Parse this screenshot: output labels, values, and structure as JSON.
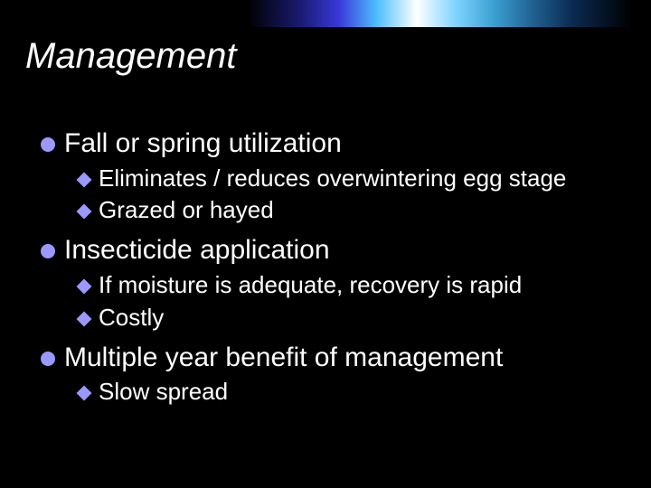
{
  "colors": {
    "background": "#000000",
    "text": "#ffffff",
    "bullet": "#9999ff"
  },
  "title": {
    "text": "Management",
    "font_size": 40,
    "font_style": "italic"
  },
  "level1_font_size": 30,
  "level2_font_size": 26,
  "l1_bullet_shape": "circle",
  "l2_bullet_shape": "diamond",
  "items": [
    {
      "text": "Fall or spring utilization",
      "sub": [
        {
          "text": "Eliminates / reduces overwintering egg stage"
        },
        {
          "text": "Grazed or hayed"
        }
      ]
    },
    {
      "text": "Insecticide application",
      "sub": [
        {
          "text": "If moisture is adequate, recovery is rapid"
        },
        {
          "text": "Costly"
        }
      ]
    },
    {
      "text": "Multiple year benefit of management",
      "sub": [
        {
          "text": "Slow spread"
        }
      ]
    }
  ]
}
